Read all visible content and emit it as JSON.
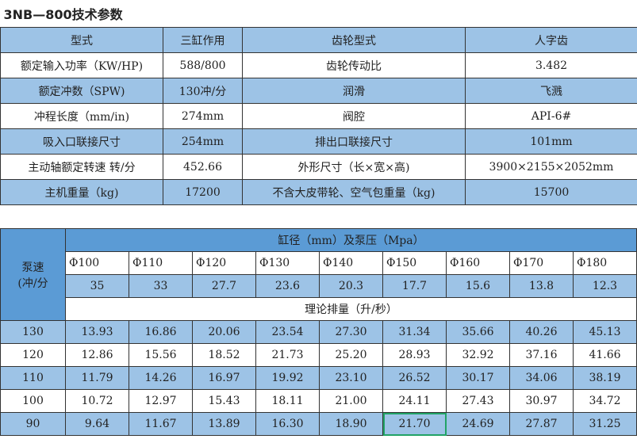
{
  "title": "3NB—800技术参数",
  "specs": [
    [
      "型式",
      "三缸作用",
      "齿轮型式",
      "人字齿"
    ],
    [
      "额定输入功率（KW/HP)",
      "588/800",
      "齿轮传动比",
      "3.482"
    ],
    [
      "额定冲数（SPW)",
      "130冲/分",
      "润滑",
      "飞溅"
    ],
    [
      "冲程长度（mm/in)",
      "274mm",
      "阀腔",
      "API-6#"
    ],
    [
      "吸入口联接尺寸",
      "254mm",
      "排出口联接尺寸",
      "101mm"
    ],
    [
      "主动轴额定转速 转/分",
      "452.66",
      "外形尺寸（长×宽×高)",
      "3900×2155×2052mm"
    ],
    [
      "主机重量（kg)",
      "17200",
      "不含大皮带轮、空气包重量（kg)",
      "15700"
    ]
  ],
  "displacement": {
    "speed_header": [
      "泵速",
      "(冲/分"
    ],
    "bore_header": "缸径（mm）及泵压（Mpa）",
    "bores": [
      "Φ100",
      "Φ110",
      "Φ120",
      "Φ130",
      "Φ140",
      "Φ150",
      "Φ160",
      "Φ170",
      "Φ180"
    ],
    "pressures": [
      "35",
      "33",
      "27.7",
      "23.6",
      "20.3",
      "17.7",
      "15.6",
      "13.8",
      "12.3"
    ],
    "flow_label": "理论排量（升/秒）",
    "rows": [
      {
        "speed": "130",
        "values": [
          "13.93",
          "16.86",
          "20.06",
          "23.54",
          "27.30",
          "31.34",
          "35.66",
          "40.26",
          "45.13"
        ]
      },
      {
        "speed": "120",
        "values": [
          "12.86",
          "15.56",
          "18.52",
          "21.73",
          "25.20",
          "28.93",
          "32.92",
          "37.16",
          "41.66"
        ]
      },
      {
        "speed": "110",
        "values": [
          "11.79",
          "14.26",
          "16.97",
          "19.92",
          "23.10",
          "26.52",
          "30.17",
          "34.06",
          "38.19"
        ]
      },
      {
        "speed": "100",
        "values": [
          "10.72",
          "12.97",
          "15.43",
          "18.11",
          "21.00",
          "24.11",
          "27.43",
          "30.97",
          "34.72"
        ]
      },
      {
        "speed": "90",
        "values": [
          "9.64",
          "11.67",
          "13.89",
          "16.30",
          "18.90",
          "21.70",
          "24.69",
          "27.87",
          "31.25"
        ]
      }
    ],
    "selected_cell": {
      "speed": "90",
      "bore": "Φ150"
    }
  },
  "colors": {
    "header_dark": "#5b9bd5",
    "row_blue": "#9dc3e6",
    "selection": "#21a366"
  }
}
